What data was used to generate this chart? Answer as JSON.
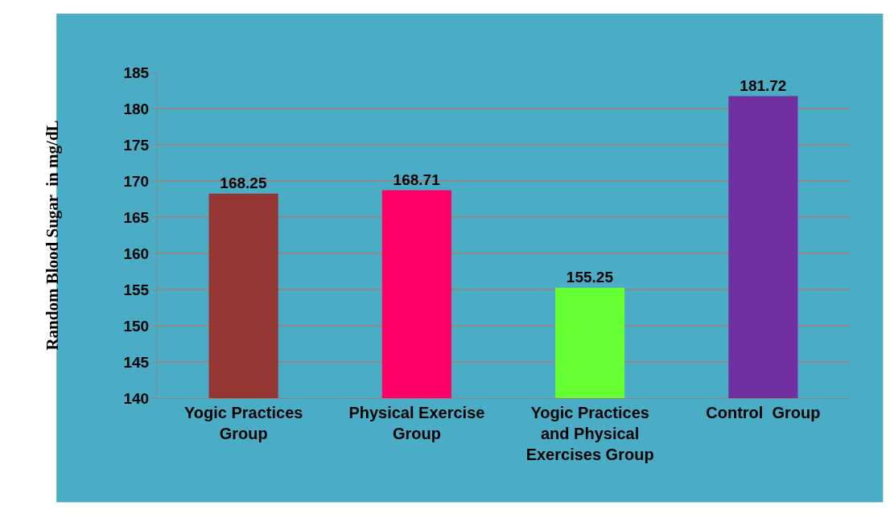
{
  "chart_data": {
    "type": "bar",
    "ylabel": "Random Blood Sugar  in mg/dL",
    "categories": [
      "Yogic Practices\nGroup",
      "Physical Exercise\nGroup",
      "Yogic Practices\nand Physical\nExercises Group",
      "Control  Group"
    ],
    "values": [
      168.25,
      168.71,
      155.25,
      181.72
    ],
    "colors": [
      "#943634",
      "#ff0066",
      "#66ff33",
      "#7030a0"
    ],
    "ylim": [
      140,
      185
    ],
    "yticks": [
      140,
      145,
      150,
      155,
      160,
      165,
      170,
      175,
      180,
      185
    ],
    "grid": "y",
    "data_labels": true
  }
}
